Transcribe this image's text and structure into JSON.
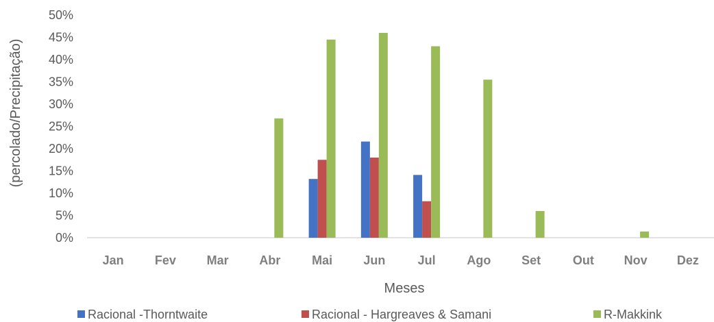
{
  "chart_data": {
    "type": "bar",
    "title": "",
    "xlabel": "Meses",
    "ylabel": "(percolado/Precipitação)",
    "ylim": [
      0,
      50
    ],
    "y_tick_step": 5,
    "y_tick_suffix": "%",
    "grid": false,
    "legend_position": "bottom",
    "categories": [
      "Jan",
      "Fev",
      "Mar",
      "Abr",
      "Mai",
      "Jun",
      "Jul",
      "Ago",
      "Set",
      "Out",
      "Nov",
      "Dez"
    ],
    "series": [
      {
        "name": "Racional -Thorntwaite",
        "color": "#4472c4",
        "values": [
          0,
          0,
          0,
          0,
          13.2,
          21.6,
          14.1,
          0,
          0,
          0,
          0,
          0
        ]
      },
      {
        "name": "Racional - Hargreaves & Samani",
        "color": "#c0504d",
        "values": [
          0,
          0,
          0,
          0,
          17.5,
          18.0,
          8.2,
          0,
          0,
          0,
          0,
          0
        ]
      },
      {
        "name": "R-Makkink",
        "color": "#9bbb59",
        "values": [
          0,
          0,
          0,
          26.8,
          44.5,
          46.0,
          43.0,
          35.5,
          6.0,
          0,
          1.4,
          0
        ]
      }
    ]
  }
}
